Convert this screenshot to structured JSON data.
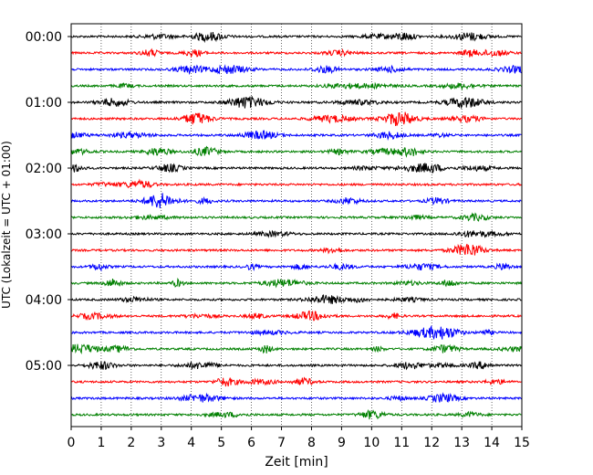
{
  "chart_data": {
    "type": "line",
    "xlabel": "Zeit  [min]",
    "ylabel": "UTC (Lokalzeit = UTC + 01:00)",
    "xlim": [
      0,
      15
    ],
    "x_ticks": [
      "0",
      "1",
      "2",
      "3",
      "4",
      "5",
      "6",
      "7",
      "8",
      "9",
      "10",
      "11",
      "12",
      "13",
      "14",
      "15"
    ],
    "y_ticks": [
      "00:00",
      "01:00",
      "02:00",
      "03:00",
      "04:00",
      "05:00"
    ],
    "trace_count": 24,
    "trace_interval_min": 15,
    "trace_colors": [
      "#000000",
      "#ff0000",
      "#0000ff",
      "#008000"
    ],
    "grid": "vertical dotted at each minute"
  }
}
